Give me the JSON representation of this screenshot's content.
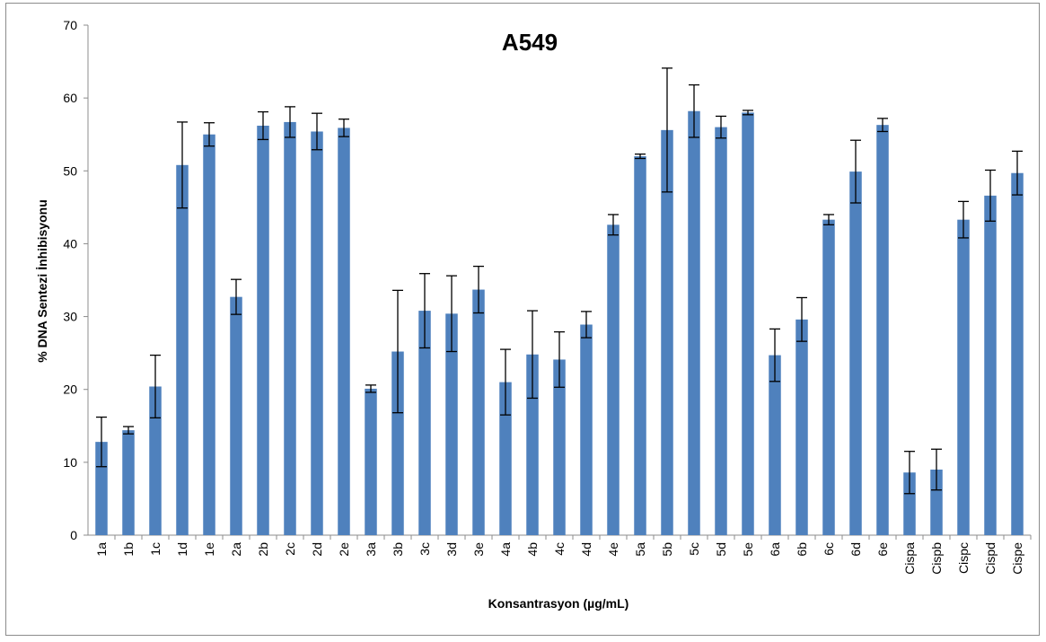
{
  "chart_data": {
    "type": "bar",
    "title": "A549",
    "xlabel": "Konsantrasyon (µg/mL)",
    "ylabel": "% DNA Sentezi İnhibisyonu",
    "ylim": [
      0,
      70
    ],
    "yticks": [
      0,
      10,
      20,
      30,
      40,
      50,
      60,
      70
    ],
    "grid": false,
    "legend": "none",
    "bar_color": "#4F81BD",
    "categories": [
      "1a",
      "1b",
      "1c",
      "1d",
      "1e",
      "2a",
      "2b",
      "2c",
      "2d",
      "2e",
      "3a",
      "3b",
      "3c",
      "3d",
      "3e",
      "4a",
      "4b",
      "4c",
      "4d",
      "4e",
      "5a",
      "5b",
      "5c",
      "5d",
      "5e",
      "6a",
      "6b",
      "6c",
      "6d",
      "6e",
      "Cispa",
      "Cispb",
      "Cispc",
      "Cispd",
      "Cispe"
    ],
    "values": [
      12.8,
      14.4,
      20.4,
      50.8,
      55.0,
      32.7,
      56.2,
      56.7,
      55.4,
      55.9,
      20.1,
      25.2,
      30.8,
      30.4,
      33.7,
      21.0,
      24.8,
      24.1,
      28.9,
      42.6,
      52.0,
      55.6,
      58.2,
      56.0,
      58.0,
      24.7,
      29.6,
      43.3,
      49.9,
      56.3,
      8.6,
      9.0,
      43.3,
      46.6,
      49.7
    ],
    "errors": [
      3.4,
      0.5,
      4.3,
      5.9,
      1.6,
      2.4,
      1.9,
      2.1,
      2.5,
      1.2,
      0.5,
      8.4,
      5.1,
      5.2,
      3.2,
      4.5,
      6.0,
      3.8,
      1.8,
      1.4,
      0.3,
      8.5,
      3.6,
      1.5,
      0.3,
      3.6,
      3.0,
      0.7,
      4.3,
      0.9,
      2.9,
      2.8,
      2.5,
      3.5,
      3.0
    ]
  }
}
